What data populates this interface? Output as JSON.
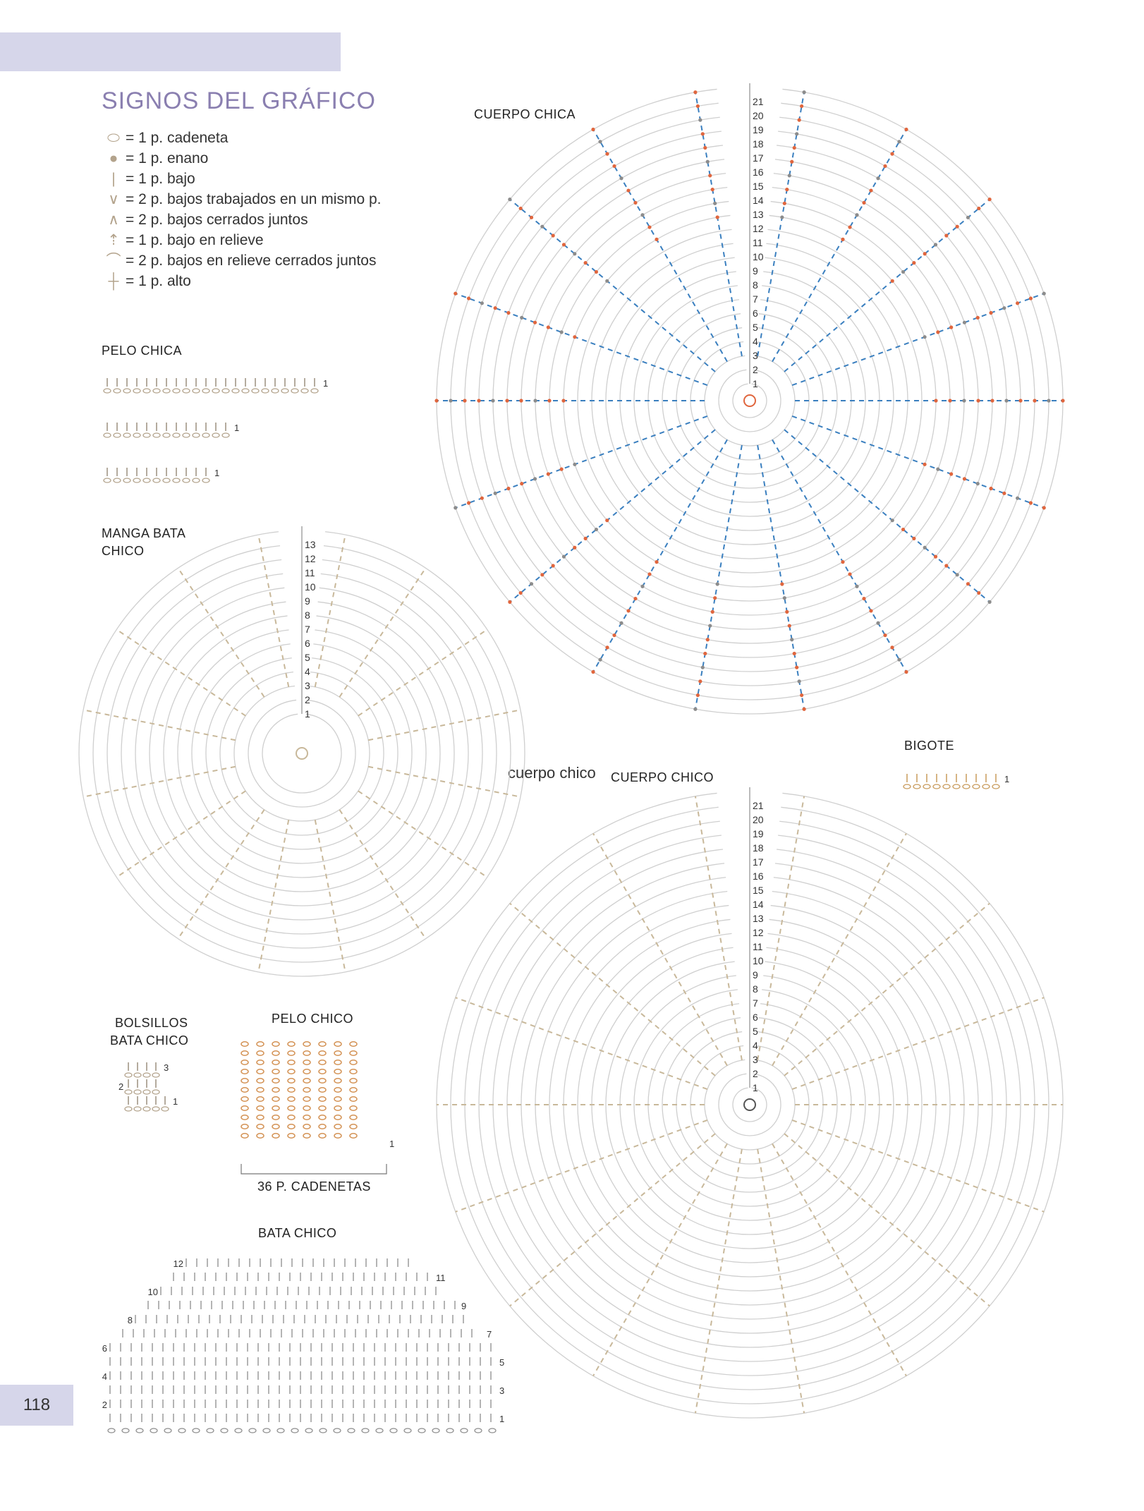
{
  "page_number": "118",
  "legend": {
    "title": "SIGNOS DEL GRÁFICO",
    "items": [
      {
        "symbol": "chain-oval-icon",
        "text": "= 1 p. cadeneta"
      },
      {
        "symbol": "slip-stitch-dot-icon",
        "text": "= 1 p. enano"
      },
      {
        "symbol": "single-crochet-line-icon",
        "text": "= 1 p. bajo"
      },
      {
        "symbol": "v-increase-icon",
        "text": "= 2 p. bajos trabajados en un mismo p."
      },
      {
        "symbol": "inverted-v-decrease-icon",
        "text": "= 2 p. bajos cerrados juntos"
      },
      {
        "symbol": "relief-stitch-icon",
        "text": "= 1 p. bajo en relieve"
      },
      {
        "symbol": "relief-decrease-icon",
        "text": "= 2 p. bajos en relieve cerrados juntos"
      },
      {
        "symbol": "double-crochet-icon",
        "text": "= 1 p. alto"
      }
    ]
  },
  "sections": {
    "pelo_chica": "PELO CHICA",
    "manga_bata_chico_1": "MANGA BATA",
    "manga_bata_chico_2": "CHICO",
    "cuerpo_chica": "CUERPO CHICA",
    "cuerpo_chico": "CUERPO CHICO",
    "cuerpo_chico_overlay": "cuerpo chico",
    "bigote": "BIGOTE",
    "bolsillos_1": "BOLSILLOS",
    "bolsillos_2": "BATA CHICO",
    "pelo_chico": "PELO CHICO",
    "cadenetas": "36 P. CADENETAS",
    "bata_chico": "BATA CHICO"
  },
  "row_labels": {
    "cuerpo_chica": [
      "1",
      "2",
      "3",
      "4",
      "5",
      "6",
      "7",
      "8",
      "9",
      "10",
      "11",
      "12",
      "13",
      "14",
      "15",
      "16",
      "17",
      "18",
      "19",
      "20",
      "21"
    ],
    "cuerpo_chico": [
      "1",
      "2",
      "3",
      "4",
      "5",
      "6",
      "7",
      "8",
      "9",
      "10",
      "11",
      "12",
      "13",
      "14",
      "15",
      "16",
      "17",
      "18",
      "19",
      "20",
      "21"
    ],
    "manga": [
      "1",
      "2",
      "3",
      "4",
      "5",
      "6",
      "7",
      "8",
      "9",
      "10",
      "11",
      "12",
      "13"
    ],
    "pelo_chica": [
      "1",
      "1",
      "1"
    ],
    "bigote": "1",
    "bolsillos": [
      "1",
      "2",
      "3"
    ],
    "pelo_chico": "1",
    "bata_left": [
      "2",
      "4",
      "6",
      "8",
      "10",
      "12"
    ],
    "bata_right": [
      "1",
      "3",
      "5",
      "7",
      "9",
      "11"
    ]
  },
  "colors": {
    "accent_purple": "#8a7fb0",
    "header_bar": "#d6d6ea",
    "ring_grey": "#cfcfcf",
    "stitch_tan": "#c8b89a",
    "stitch_orange": "#e0663e",
    "stitch_blue": "#3a7fbf",
    "stitch_grey": "#8c8c8c",
    "stitch_dark": "#555555"
  }
}
